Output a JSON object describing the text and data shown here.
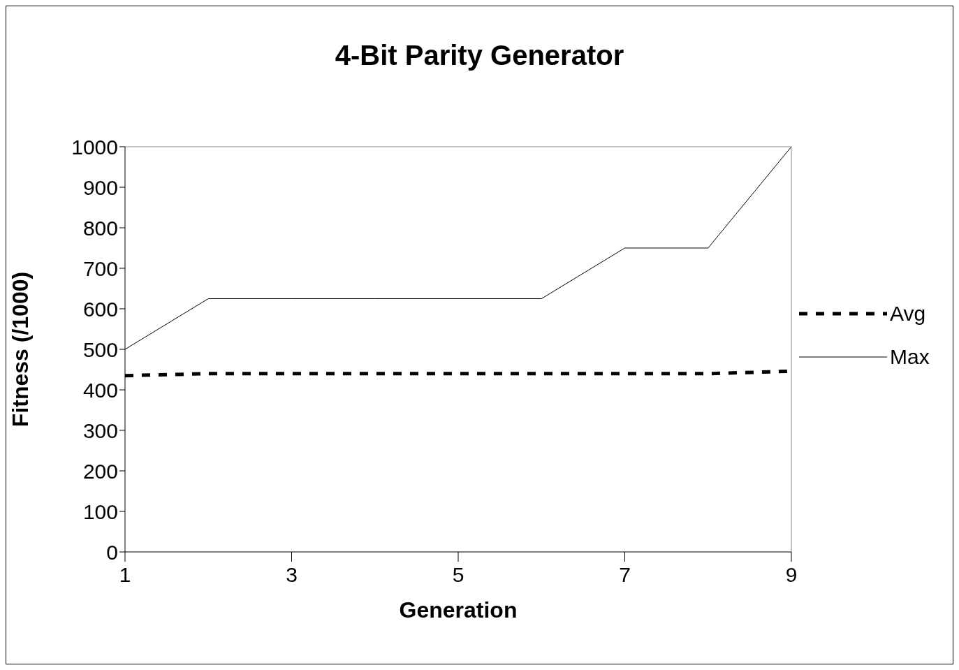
{
  "chart_data": {
    "type": "line",
    "title": "4-Bit Parity Generator",
    "xlabel": "Generation",
    "ylabel": "Fitness (/1000)",
    "x": [
      1,
      2,
      3,
      4,
      5,
      6,
      7,
      8,
      9
    ],
    "xlim": [
      1,
      9
    ],
    "xticks": [
      1,
      3,
      5,
      7,
      9
    ],
    "ylim": [
      0,
      1000
    ],
    "yticks": [
      0,
      100,
      200,
      300,
      400,
      500,
      600,
      700,
      800,
      900,
      1000
    ],
    "legend": "right",
    "marker": "none",
    "series": [
      {
        "name": "Avg",
        "color": "#000000",
        "line_style": "dashed",
        "values": [
          435,
          440,
          440,
          440,
          440,
          440,
          440,
          440,
          446
        ]
      },
      {
        "name": "Max",
        "color": "#000000",
        "line_style": "solid",
        "values": [
          500,
          625,
          625,
          625,
          625,
          625,
          750,
          750,
          1000
        ]
      }
    ]
  }
}
